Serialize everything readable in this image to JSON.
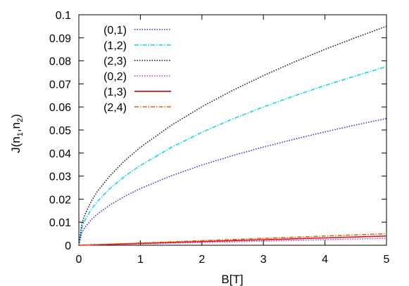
{
  "chart_data": {
    "type": "line",
    "xlabel": "B[T]",
    "ylabel": {
      "base": "J(n",
      "sub1": "1",
      "mid": ",n",
      "sub2": "2",
      "end": ")"
    },
    "xlim": [
      0,
      5
    ],
    "ylim": [
      0,
      0.1
    ],
    "x_ticks": [
      "0",
      "1",
      "2",
      "3",
      "4",
      "5"
    ],
    "y_ticks": [
      "0",
      "0.01",
      "0.02",
      "0.03",
      "0.04",
      "0.05",
      "0.06",
      "0.07",
      "0.08",
      "0.09",
      "0.1"
    ],
    "grid": false,
    "legend_position": "top-left",
    "x": [
      0,
      0.05,
      0.1,
      0.2,
      0.3,
      0.5,
      0.75,
      1,
      1.5,
      2,
      2.5,
      3,
      3.5,
      4,
      4.5,
      5
    ],
    "series": [
      {
        "name": "(0,1)",
        "color": "#2b2bd6",
        "dash": "dotted",
        "values": [
          0,
          0.0055,
          0.0078,
          0.011,
          0.0135,
          0.0174,
          0.0213,
          0.0246,
          0.0301,
          0.0348,
          0.0389,
          0.0426,
          0.046,
          0.0492,
          0.0522,
          0.055
        ]
      },
      {
        "name": "(1,2)",
        "color": "#00d8e8",
        "dash": "dash-dot",
        "values": [
          0,
          0.0077,
          0.0109,
          0.0155,
          0.019,
          0.0245,
          0.03,
          0.0346,
          0.0424,
          0.049,
          0.0548,
          0.06,
          0.0648,
          0.0693,
          0.0735,
          0.0775
        ]
      },
      {
        "name": "(2,3)",
        "color": "#111111",
        "dash": "dotted",
        "values": [
          0,
          0.0095,
          0.0134,
          0.019,
          0.0233,
          0.03,
          0.0368,
          0.0425,
          0.052,
          0.0601,
          0.0672,
          0.0736,
          0.0795,
          0.085,
          0.0901,
          0.095
        ]
      },
      {
        "name": "(0,2)",
        "color": "#e020e0",
        "dash": "dotted",
        "values": [
          0,
          3e-05,
          6e-05,
          0.00012,
          0.00018,
          0.0003,
          0.00045,
          0.0006,
          0.0009,
          0.0012,
          0.0015,
          0.0018,
          0.0021,
          0.0024,
          0.0027,
          0.003
        ]
      },
      {
        "name": "(1,3)",
        "color": "#e01010",
        "dash": "solid",
        "values": [
          0,
          4e-05,
          8e-05,
          0.00016,
          0.00024,
          0.0004,
          0.0006,
          0.0008,
          0.0012,
          0.0016,
          0.002,
          0.0024,
          0.0028,
          0.0032,
          0.0036,
          0.004
        ]
      },
      {
        "name": "(2,4)",
        "color": "#e06010",
        "dash": "dash-dot",
        "values": [
          0,
          5e-05,
          0.0001,
          0.0002,
          0.0003,
          0.0005,
          0.00075,
          0.001,
          0.0015,
          0.002,
          0.0025,
          0.003,
          0.0035,
          0.004,
          0.0045,
          0.005
        ]
      }
    ]
  }
}
